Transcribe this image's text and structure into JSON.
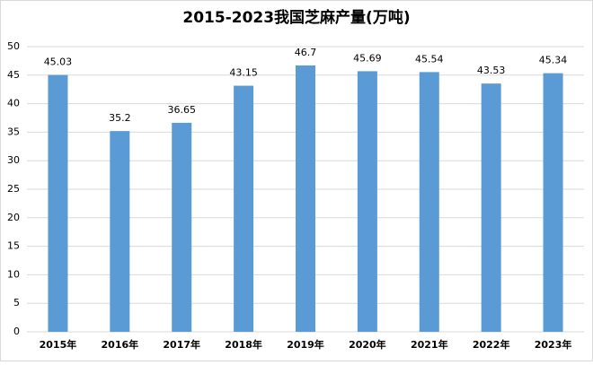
{
  "chart_data": {
    "type": "bar",
    "title": "2015-2023我国芝麻产量(万吨)",
    "categories": [
      "2015年",
      "2016年",
      "2017年",
      "2018年",
      "2019年",
      "2020年",
      "2021年",
      "2022年",
      "2023年"
    ],
    "values": [
      45.03,
      35.2,
      36.65,
      43.15,
      46.7,
      45.69,
      45.54,
      43.53,
      45.34
    ],
    "color": "#5b9bd5",
    "ylim": [
      0,
      50
    ],
    "yticks": [
      0,
      5,
      10,
      15,
      20,
      25,
      30,
      35,
      40,
      45,
      50
    ],
    "grid": true
  }
}
